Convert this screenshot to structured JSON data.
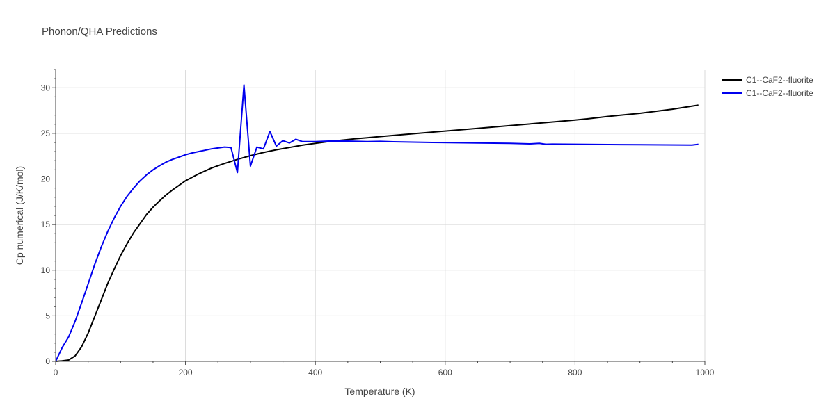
{
  "chart_data": {
    "type": "line",
    "title": "Phonon/QHA Predictions",
    "xlabel": "Temperature (K)",
    "ylabel": "Cp numerical (J/K/mol)",
    "xlim": [
      0,
      1000
    ],
    "ylim": [
      0,
      32
    ],
    "xticks": [
      0,
      200,
      400,
      600,
      800,
      1000
    ],
    "yticks": [
      0,
      5,
      10,
      15,
      20,
      25,
      30
    ],
    "grid": true,
    "legend_position": "top-right",
    "series": [
      {
        "name": "C1--CaF2--fluorite",
        "color": "#000000",
        "x": [
          0,
          10,
          20,
          30,
          40,
          50,
          60,
          70,
          80,
          90,
          100,
          110,
          120,
          130,
          140,
          150,
          160,
          170,
          180,
          190,
          200,
          220,
          240,
          260,
          280,
          300,
          320,
          340,
          360,
          380,
          400,
          420,
          440,
          460,
          480,
          500,
          550,
          600,
          650,
          700,
          750,
          800,
          820,
          850,
          900,
          950,
          990
        ],
        "y": [
          0,
          0.05,
          0.15,
          0.6,
          1.6,
          3.1,
          4.9,
          6.7,
          8.5,
          10.1,
          11.6,
          12.9,
          14.1,
          15.1,
          16.1,
          16.9,
          17.6,
          18.25,
          18.8,
          19.3,
          19.8,
          20.55,
          21.2,
          21.7,
          22.15,
          22.55,
          22.9,
          23.2,
          23.45,
          23.7,
          23.9,
          24.1,
          24.25,
          24.4,
          24.52,
          24.65,
          24.95,
          25.25,
          25.55,
          25.85,
          26.15,
          26.45,
          26.6,
          26.85,
          27.2,
          27.65,
          28.1
        ]
      },
      {
        "name": "C1--CaF2--fluorite",
        "color": "#0000ee",
        "x": [
          0,
          10,
          20,
          30,
          40,
          50,
          60,
          70,
          80,
          90,
          100,
          110,
          120,
          130,
          140,
          150,
          160,
          170,
          180,
          190,
          200,
          210,
          220,
          230,
          240,
          250,
          260,
          270,
          280,
          290,
          300,
          310,
          320,
          330,
          340,
          350,
          360,
          370,
          380,
          400,
          420,
          450,
          480,
          500,
          520,
          580,
          650,
          700,
          730,
          745,
          755,
          765,
          800,
          900,
          980,
          990
        ],
        "y": [
          0,
          1.5,
          2.7,
          4.4,
          6.4,
          8.5,
          10.6,
          12.5,
          14.2,
          15.7,
          17.0,
          18.1,
          19.0,
          19.8,
          20.45,
          21.0,
          21.45,
          21.85,
          22.15,
          22.4,
          22.65,
          22.85,
          23.0,
          23.15,
          23.3,
          23.4,
          23.5,
          23.45,
          20.7,
          30.3,
          21.4,
          23.5,
          23.3,
          25.2,
          23.6,
          24.2,
          23.95,
          24.35,
          24.1,
          24.1,
          24.15,
          24.15,
          24.1,
          24.12,
          24.08,
          24.0,
          23.95,
          23.9,
          23.85,
          23.9,
          23.8,
          23.82,
          23.8,
          23.75,
          23.72,
          23.8
        ]
      }
    ]
  }
}
